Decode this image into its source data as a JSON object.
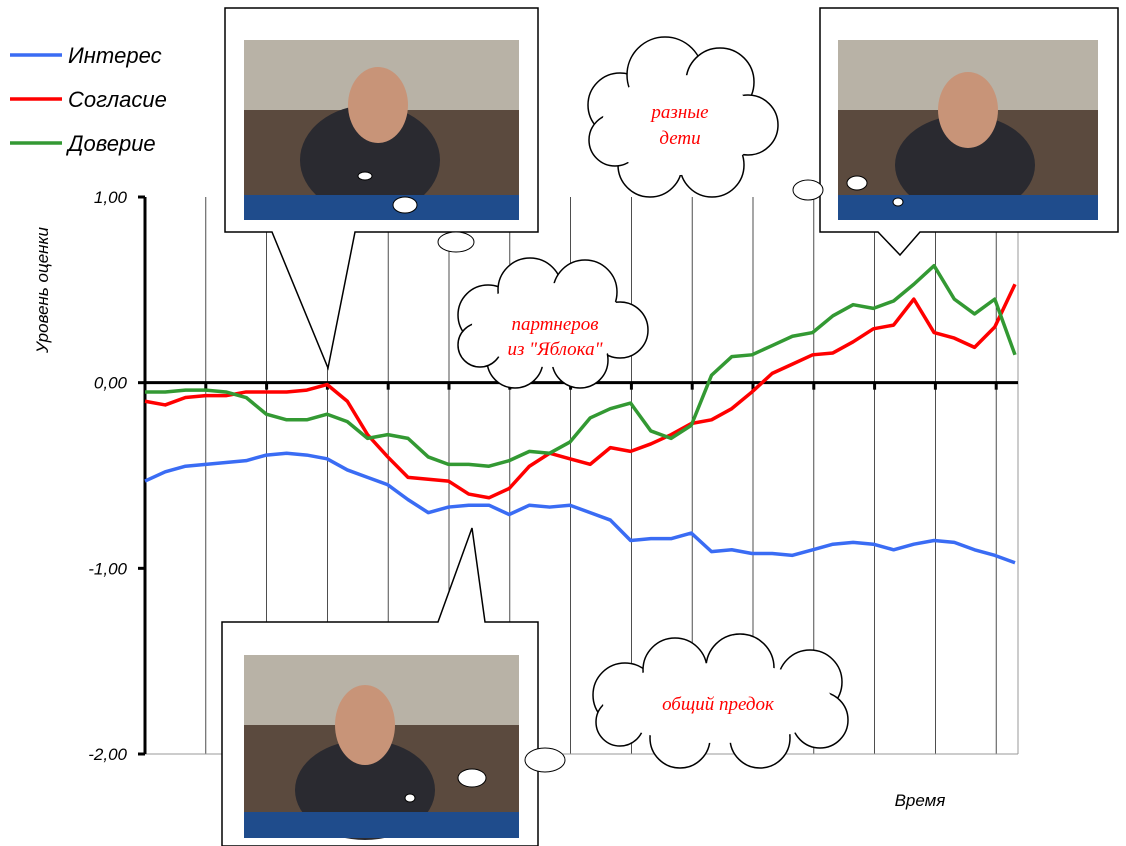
{
  "chart_data": {
    "type": "line",
    "ylabel": "Уровень оценки",
    "xlabel": "Время",
    "ylim": [
      -2,
      1
    ],
    "yticks": [
      {
        "value": 1,
        "label": "1,00"
      },
      {
        "value": 0,
        "label": "0,00"
      },
      {
        "value": -1,
        "label": "-1,00"
      },
      {
        "value": -2,
        "label": "-2,00"
      }
    ],
    "grid": true,
    "legend": "top-left",
    "series": [
      {
        "name": "Интерес",
        "color": "#3a6cf4",
        "values": [
          -0.53,
          -0.48,
          -0.45,
          -0.44,
          -0.43,
          -0.42,
          -0.39,
          -0.38,
          -0.39,
          -0.41,
          -0.47,
          -0.51,
          -0.55,
          -0.63,
          -0.7,
          -0.67,
          -0.66,
          -0.66,
          -0.71,
          -0.66,
          -0.67,
          -0.66,
          -0.7,
          -0.74,
          -0.85,
          -0.84,
          -0.84,
          -0.81,
          -0.91,
          -0.9,
          -0.92,
          -0.92,
          -0.93,
          -0.9,
          -0.87,
          -0.86,
          -0.87,
          -0.9,
          -0.87,
          -0.85,
          -0.86,
          -0.9,
          -0.93,
          -0.97
        ]
      },
      {
        "name": "Согласие",
        "color": "#ff0000",
        "values": [
          -0.1,
          -0.12,
          -0.08,
          -0.07,
          -0.07,
          -0.05,
          -0.05,
          -0.05,
          -0.04,
          -0.01,
          -0.1,
          -0.28,
          -0.4,
          -0.51,
          -0.52,
          -0.53,
          -0.6,
          -0.62,
          -0.57,
          -0.45,
          -0.38,
          -0.41,
          -0.44,
          -0.35,
          -0.37,
          -0.33,
          -0.28,
          -0.22,
          -0.2,
          -0.14,
          -0.05,
          0.05,
          0.1,
          0.15,
          0.16,
          0.22,
          0.29,
          0.31,
          0.45,
          0.27,
          0.24,
          0.19,
          0.3,
          0.53
        ]
      },
      {
        "name": "Доверие",
        "color": "#339933",
        "values": [
          -0.05,
          -0.05,
          -0.04,
          -0.04,
          -0.05,
          -0.08,
          -0.17,
          -0.2,
          -0.2,
          -0.17,
          -0.21,
          -0.3,
          -0.28,
          -0.3,
          -0.4,
          -0.44,
          -0.44,
          -0.45,
          -0.42,
          -0.37,
          -0.38,
          -0.32,
          -0.19,
          -0.14,
          -0.11,
          -0.26,
          -0.3,
          -0.23,
          0.04,
          0.14,
          0.15,
          0.2,
          0.25,
          0.27,
          0.36,
          0.42,
          0.4,
          0.44,
          0.53,
          0.63,
          0.45,
          0.37,
          0.45,
          0.15
        ]
      }
    ],
    "annotations": [
      [
        "разные",
        "дети"
      ],
      [
        "партнеров",
        "из \"Яблока\""
      ],
      [
        "общий предок"
      ]
    ]
  }
}
